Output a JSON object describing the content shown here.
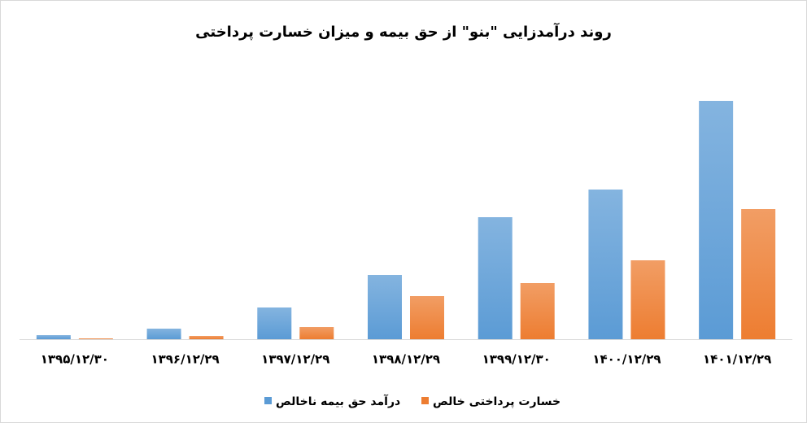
{
  "chart_data": {
    "type": "bar",
    "title": "روند درآمدزایی \"بنو\" از حق بیمه و میزان خسارت پرداختی",
    "categories": [
      "۱۳۹۵/۱۲/۳۰",
      "۱۳۹۶/۱۲/۲۹",
      "۱۳۹۷/۱۲/۲۹",
      "۱۳۹۸/۱۲/۲۹",
      "۱۳۹۹/۱۲/۳۰",
      "۱۴۰۰/۱۲/۲۹",
      "۱۴۰۱/۱۲/۲۹"
    ],
    "series": [
      {
        "name": "درآمد حق بیمه ناخالص",
        "color": "#5b9bd5",
        "values": [
          5,
          13,
          39,
          79,
          150,
          184,
          293
        ]
      },
      {
        "name": "خسارت پرداختی خالص",
        "color": "#ed7d31",
        "values": [
          1,
          4,
          15,
          53,
          69,
          97,
          160
        ]
      }
    ],
    "ylim": [
      0,
      320
    ]
  }
}
